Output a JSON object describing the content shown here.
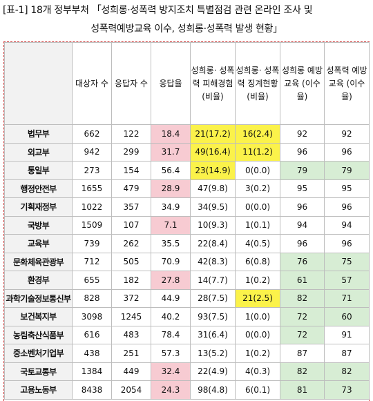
{
  "title": {
    "line1": "[표-1] 18개 정부부처 「성희롱·성폭력 방지조치 특별점검 관련 온라인 조사 및",
    "line2": "성폭력예방교육 이수, 성희롱·성폭력 발생 현황」"
  },
  "headers": [
    "",
    "대상자 수",
    "응답자 수",
    "응답율",
    "성희롱· 성폭력 피해경험 (비율)",
    "성희롱· 성폭력 징계현황 (비율)",
    "성희롱 예방 교육 (이수율)",
    "성폭력 예방 교육 (이수율)"
  ],
  "colors": {
    "pink": "#f7cbd2",
    "yellow": "#fbf24a",
    "green": "#d7edd4",
    "header_bg": "#f2f2f2"
  },
  "rows": [
    {
      "name": "법무부",
      "cells": [
        "662",
        "122",
        "18.4",
        "21(17.2)",
        "16(2.4)",
        "92",
        "92"
      ],
      "hl": [
        "",
        "",
        "pink",
        "yellow",
        "yellow",
        "",
        ""
      ]
    },
    {
      "name": "외교부",
      "cells": [
        "942",
        "299",
        "31.7",
        "49(16.4)",
        "11(1.2)",
        "96",
        "96"
      ],
      "hl": [
        "",
        "",
        "pink",
        "yellow",
        "yellow",
        "",
        ""
      ]
    },
    {
      "name": "통일부",
      "cells": [
        "273",
        "154",
        "56.4",
        "23(14.9)",
        "0(0.0)",
        "79",
        "79"
      ],
      "hl": [
        "",
        "",
        "",
        "yellow",
        "",
        "green",
        "green"
      ]
    },
    {
      "name": "행정안전부",
      "cells": [
        "1655",
        "479",
        "28.9",
        "47(9.8)",
        "3(0.2)",
        "95",
        "95"
      ],
      "hl": [
        "",
        "",
        "pink",
        "",
        "",
        "",
        ""
      ]
    },
    {
      "name": "기획재정부",
      "cells": [
        "1022",
        "357",
        "34.9",
        "34(9.5)",
        "0(0.0)",
        "96",
        "96"
      ],
      "hl": [
        "",
        "",
        "",
        "",
        "",
        "",
        ""
      ]
    },
    {
      "name": "국방부",
      "cells": [
        "1509",
        "107",
        "7.1",
        "10(9.3)",
        "1(0.1)",
        "94",
        "94"
      ],
      "hl": [
        "",
        "",
        "pink",
        "",
        "",
        "",
        ""
      ]
    },
    {
      "name": "교육부",
      "cells": [
        "739",
        "262",
        "35.5",
        "22(8.4)",
        "4(0.5)",
        "96",
        "96"
      ],
      "hl": [
        "",
        "",
        "",
        "",
        "",
        "",
        ""
      ]
    },
    {
      "name": "문화체육관광부",
      "cells": [
        "712",
        "505",
        "70.9",
        "42(8.3)",
        "6(0.8)",
        "76",
        "75"
      ],
      "hl": [
        "",
        "",
        "",
        "",
        "",
        "green",
        "green"
      ]
    },
    {
      "name": "환경부",
      "cells": [
        "655",
        "182",
        "27.8",
        "14(7.7)",
        "1(0.2)",
        "61",
        "57"
      ],
      "hl": [
        "",
        "",
        "pink",
        "",
        "",
        "green",
        "green"
      ]
    },
    {
      "name": "과학기술정보통신부",
      "cells": [
        "828",
        "372",
        "44.9",
        "28(7.5)",
        "21(2.5)",
        "82",
        "71"
      ],
      "hl": [
        "",
        "",
        "",
        "",
        "yellow",
        "green",
        "green"
      ]
    },
    {
      "name": "보건복지부",
      "cells": [
        "3098",
        "1245",
        "40.2",
        "93(7.5)",
        "1(0.0)",
        "72",
        "60"
      ],
      "hl": [
        "",
        "",
        "",
        "",
        "",
        "green",
        "green"
      ]
    },
    {
      "name": "농림축산식품부",
      "cells": [
        "616",
        "483",
        "78.4",
        "31(6.4)",
        "0(0.0)",
        "72",
        "91"
      ],
      "hl": [
        "",
        "",
        "",
        "",
        "",
        "green",
        ""
      ]
    },
    {
      "name": "중소벤처기업부",
      "cells": [
        "438",
        "251",
        "57.3",
        "13(5.2)",
        "1(0.2)",
        "87",
        "87"
      ],
      "hl": [
        "",
        "",
        "",
        "",
        "",
        "",
        ""
      ]
    },
    {
      "name": "국토교통부",
      "cells": [
        "1384",
        "449",
        "32.4",
        "22(4.9)",
        "4(0.3)",
        "82",
        "82"
      ],
      "hl": [
        "",
        "",
        "pink",
        "",
        "",
        "green",
        "green"
      ]
    },
    {
      "name": "고용노동부",
      "cells": [
        "8438",
        "2054",
        "24.3",
        "98(4.8)",
        "6(0.1)",
        "81",
        "73"
      ],
      "hl": [
        "",
        "",
        "pink",
        "",
        "",
        "green",
        "green"
      ]
    }
  ]
}
